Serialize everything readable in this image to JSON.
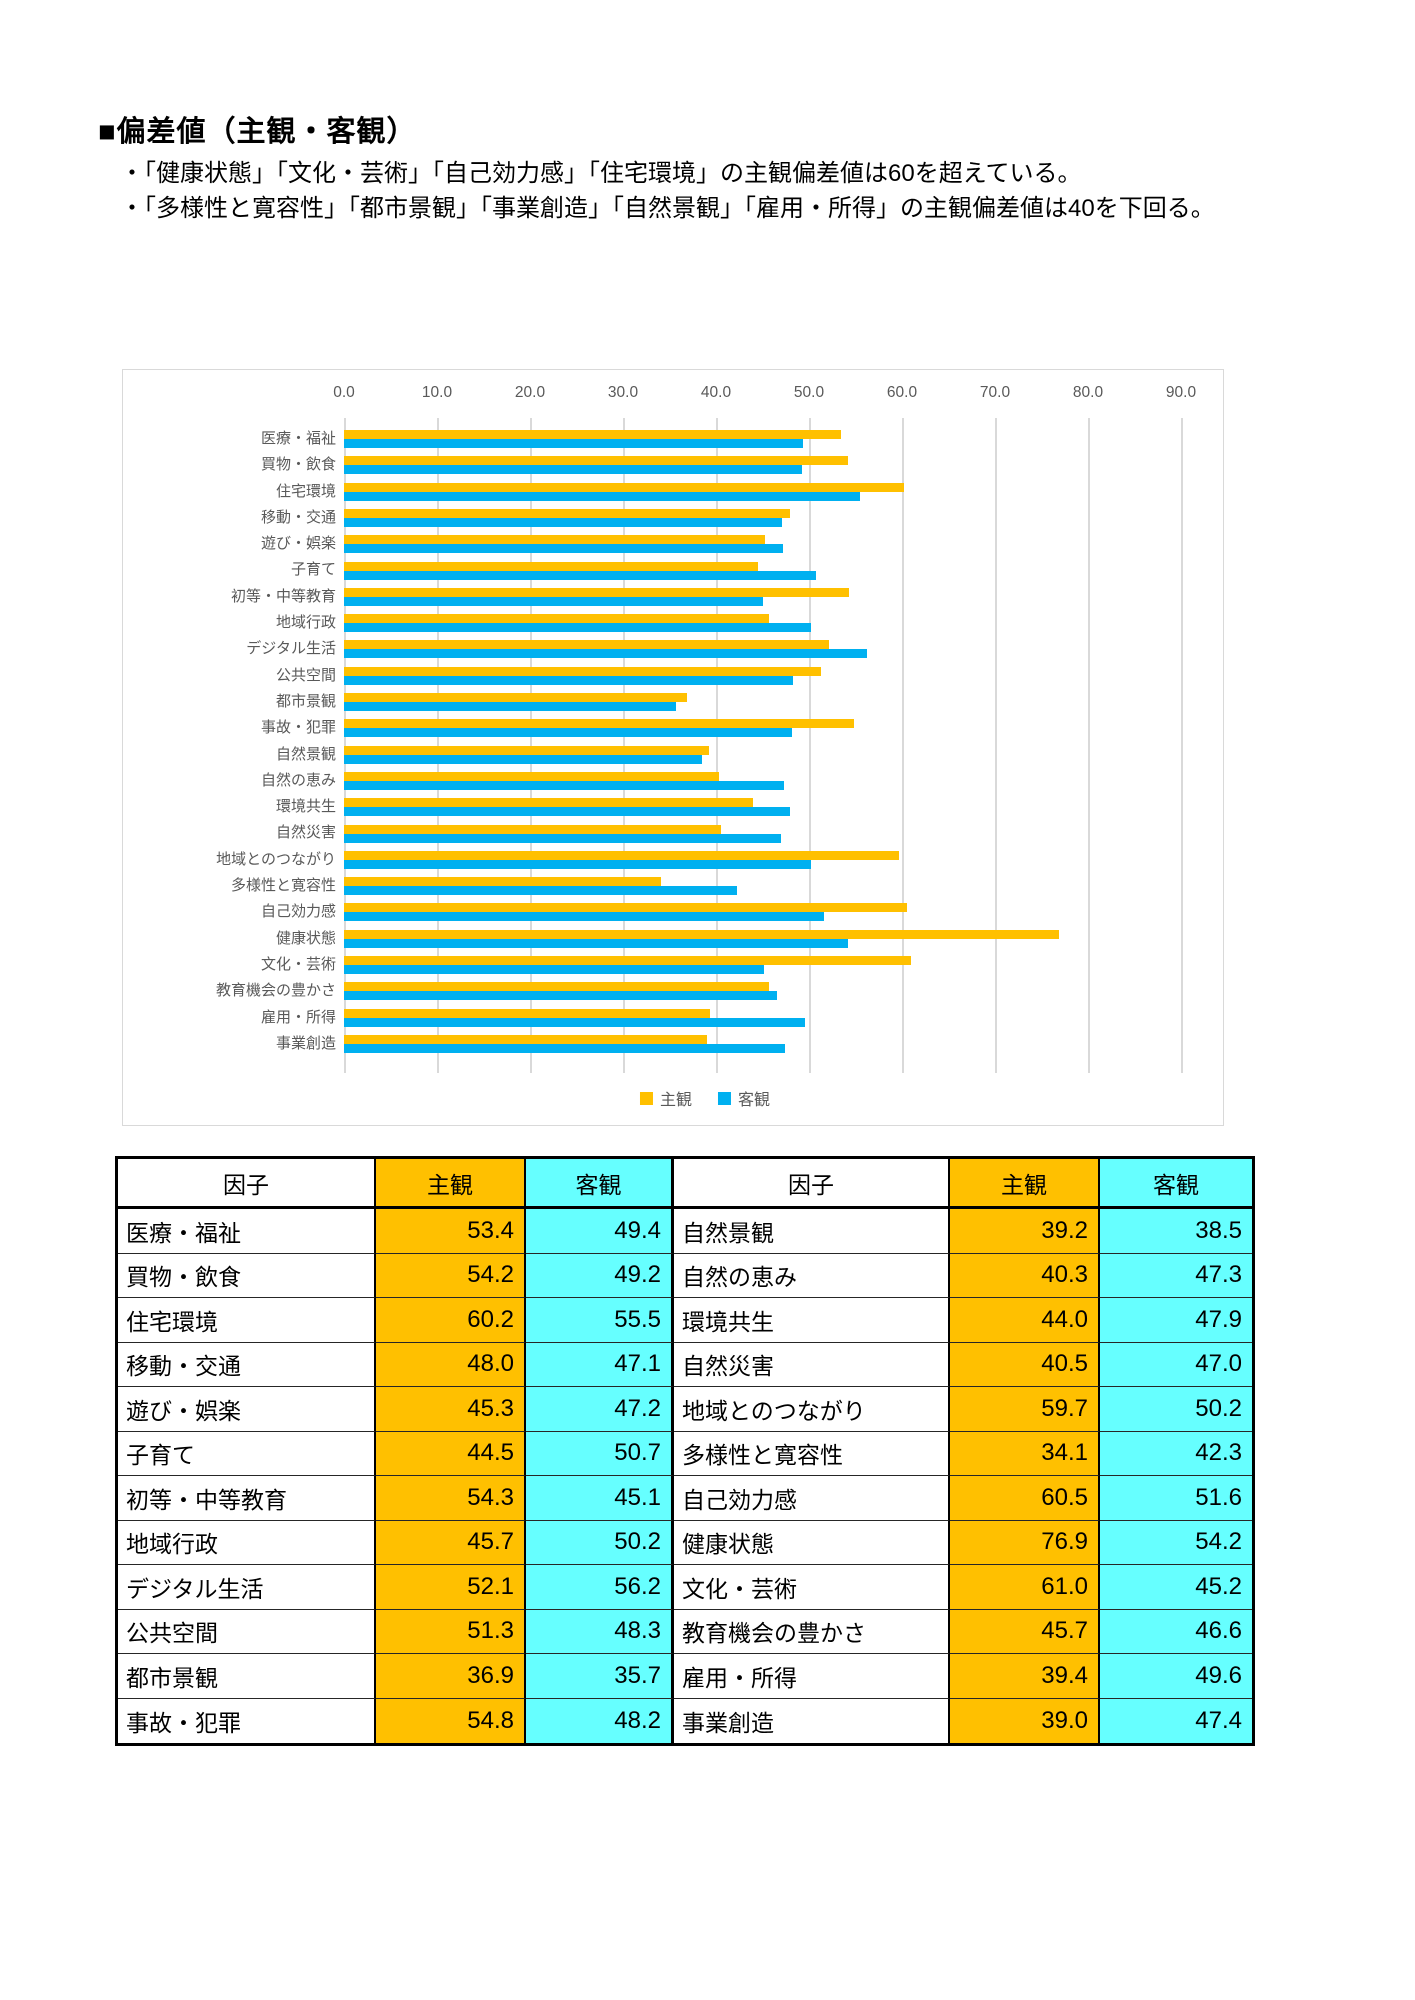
{
  "page": {
    "title": "■偏差値（主観・客観）"
  },
  "notes": [
    "・「健康状態」「文化・芸術」「自己効力感」「住宅環境」の主観偏差値は60を超えている。",
    "・「多様性と寛容性」「都市景観」「事業創造」「自然景観」「雇用・所得」の主観偏差値は40を下回る。"
  ],
  "chart_data": {
    "type": "bar",
    "orientation": "horizontal",
    "title": "",
    "categories": [
      "医療・福祉",
      "買物・飲食",
      "住宅環境",
      "移動・交通",
      "遊び・娯楽",
      "子育て",
      "初等・中等教育",
      "地域行政",
      "デジタル生活",
      "公共空間",
      "都市景観",
      "事故・犯罪",
      "自然景観",
      "自然の恵み",
      "環境共生",
      "自然災害",
      "地域とのつながり",
      "多様性と寛容性",
      "自己効力感",
      "健康状態",
      "文化・芸術",
      "教育機会の豊かさ",
      "雇用・所得",
      "事業創造"
    ],
    "series": [
      {
        "name": "主観",
        "color": "#FFC000",
        "values": [
          53.4,
          54.2,
          60.2,
          48.0,
          45.3,
          44.5,
          54.3,
          45.7,
          52.1,
          51.3,
          36.9,
          54.8,
          39.2,
          40.3,
          44.0,
          40.5,
          59.7,
          34.1,
          60.5,
          76.9,
          61.0,
          45.7,
          39.4,
          39.0
        ]
      },
      {
        "name": "客観",
        "color": "#00B0F0",
        "values": [
          49.4,
          49.2,
          55.5,
          47.1,
          47.2,
          50.7,
          45.1,
          50.2,
          56.2,
          48.3,
          35.7,
          48.2,
          38.5,
          47.3,
          47.9,
          47.0,
          50.2,
          42.3,
          51.6,
          54.2,
          45.2,
          46.6,
          49.6,
          47.4
        ]
      }
    ],
    "xlim": [
      0,
      90
    ],
    "xticks": [
      "0.0",
      "10.0",
      "20.0",
      "30.0",
      "40.0",
      "50.0",
      "60.0",
      "70.0",
      "80.0",
      "90.0"
    ],
    "grid": true,
    "legend_position": "bottom"
  },
  "table": {
    "headers": [
      "因子",
      "主観",
      "客観",
      "因子",
      "主観",
      "客観"
    ],
    "rows": [
      [
        "医療・福祉",
        "53.4",
        "49.4",
        "自然景観",
        "39.2",
        "38.5"
      ],
      [
        "買物・飲食",
        "54.2",
        "49.2",
        "自然の恵み",
        "40.3",
        "47.3"
      ],
      [
        "住宅環境",
        "60.2",
        "55.5",
        "環境共生",
        "44.0",
        "47.9"
      ],
      [
        "移動・交通",
        "48.0",
        "47.1",
        "自然災害",
        "40.5",
        "47.0"
      ],
      [
        "遊び・娯楽",
        "45.3",
        "47.2",
        "地域とのつながり",
        "59.7",
        "50.2"
      ],
      [
        "子育て",
        "44.5",
        "50.7",
        "多様性と寛容性",
        "34.1",
        "42.3"
      ],
      [
        "初等・中等教育",
        "54.3",
        "45.1",
        "自己効力感",
        "60.5",
        "51.6"
      ],
      [
        "地域行政",
        "45.7",
        "50.2",
        "健康状態",
        "76.9",
        "54.2"
      ],
      [
        "デジタル生活",
        "52.1",
        "56.2",
        "文化・芸術",
        "61.0",
        "45.2"
      ],
      [
        "公共空間",
        "51.3",
        "48.3",
        "教育機会の豊かさ",
        "45.7",
        "46.6"
      ],
      [
        "都市景観",
        "36.9",
        "35.7",
        "雇用・所得",
        "39.4",
        "49.6"
      ],
      [
        "事故・犯罪",
        "54.8",
        "48.2",
        "事業創造",
        "39.0",
        "47.4"
      ]
    ],
    "colors": {
      "subjective_bg": "#FFC000",
      "objective_bg": "#66FFFF"
    }
  }
}
